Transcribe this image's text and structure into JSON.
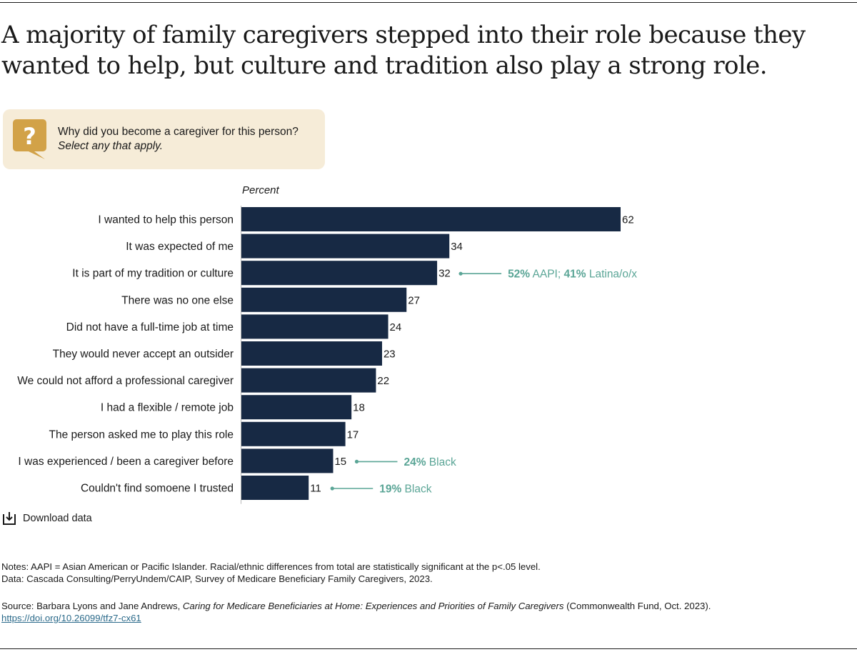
{
  "title": "A majority of family caregivers stepped into their role because they wanted to help, but culture and tradition also play a strong role.",
  "question": {
    "text": "Why did you become a caregiver for this person?",
    "subtext": "Select any that apply.",
    "icon": "question-bubble-icon"
  },
  "colors": {
    "bar": "#172944",
    "annotation": "#5aa596",
    "question_bg": "#f6ecd8",
    "question_icon": "#d2a248"
  },
  "chart_data": {
    "type": "bar",
    "orientation": "horizontal",
    "xlabel": "Percent",
    "xlim": [
      0,
      62
    ],
    "categories": [
      "I wanted to help this person",
      "It was expected of me",
      "It is part of my tradition or culture",
      "There was no one else",
      "Did not have a full-time job at time",
      "They would never accept an outsider",
      "We could not afford a professional caregiver",
      "I had a flexible / remote job",
      "The person asked me to play this role",
      "I was experienced / been a caregiver before",
      "Couldn't find somoene I trusted"
    ],
    "values": [
      62,
      34,
      32,
      27,
      24,
      23,
      22,
      18,
      17,
      15,
      11
    ],
    "annotations": [
      {
        "category_index": 2,
        "parts": [
          {
            "text": "52%",
            "bold": true
          },
          {
            "text": " AAPI; ",
            "bold": false
          },
          {
            "text": "41%",
            "bold": true
          },
          {
            "text": " Latina/o/x",
            "bold": false
          }
        ]
      },
      {
        "category_index": 9,
        "parts": [
          {
            "text": "24%",
            "bold": true
          },
          {
            "text": " Black",
            "bold": false
          }
        ]
      },
      {
        "category_index": 10,
        "parts": [
          {
            "text": "19%",
            "bold": true
          },
          {
            "text": " Black",
            "bold": false
          }
        ]
      }
    ]
  },
  "download_label": "Download data",
  "notes": {
    "line1": "Notes: AAPI = Asian American or Pacific Islander. Racial/ethnic differences from total are statistically significant at the p<.05 level.",
    "line2": "Data: Cascada Consulting/PerryUndem/CAIP, Survey of Medicare Beneficiary Family Caregivers, 2023."
  },
  "source": {
    "prefix": "Source: Barbara Lyons and Jane Andrews, ",
    "publication": "Caring for Medicare Beneficiaries at Home: Experiences and Priorities of Family Caregivers",
    "suffix": " (Commonwealth Fund, Oct. 2023).",
    "link": "https://doi.org/10.26099/tfz7-cx61"
  }
}
